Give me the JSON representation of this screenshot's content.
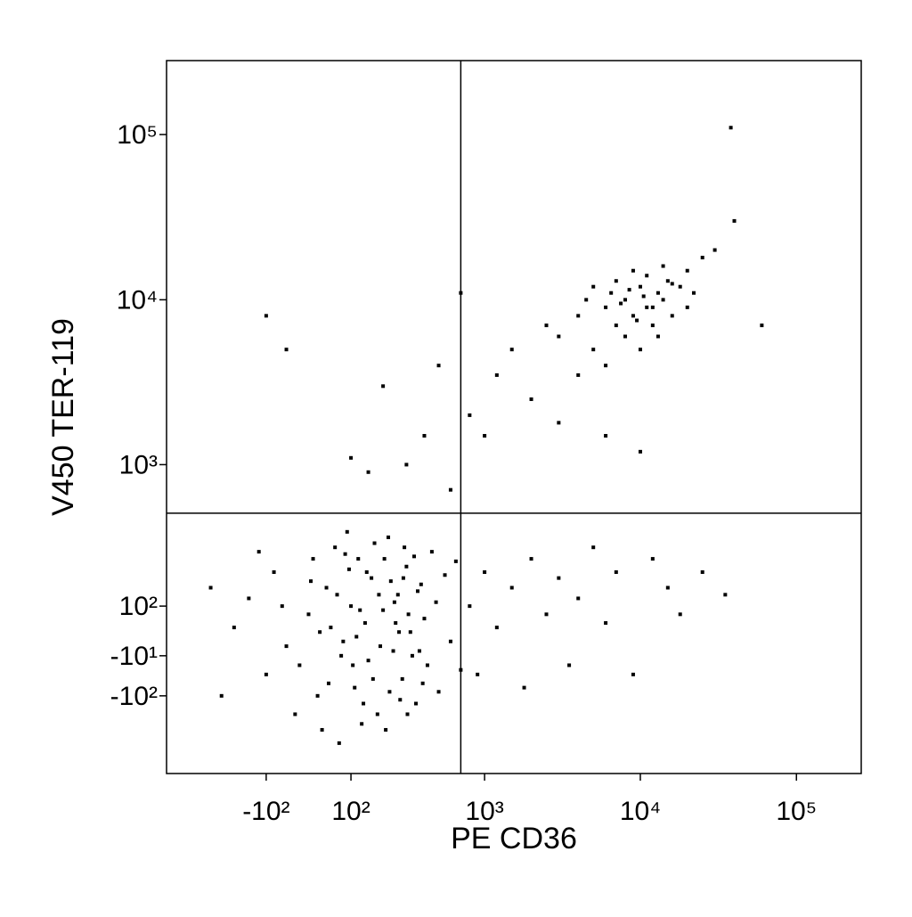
{
  "chart_data": {
    "type": "scatter",
    "xlabel": "PE CD36",
    "ylabel": "V450 TER-119",
    "xscale": "biexponential",
    "yscale": "biexponential",
    "color": "#000000",
    "xlim": [
      -600,
      260000
    ],
    "ylim": [
      -400,
      280000
    ],
    "xticks": [
      {
        "value": -100,
        "label": "-10²"
      },
      {
        "value": 100,
        "label": "10²"
      },
      {
        "value": 1000,
        "label": "10³"
      },
      {
        "value": 10000,
        "label": "10⁴"
      },
      {
        "value": 100000,
        "label": "10⁵"
      }
    ],
    "yticks": [
      {
        "value": -100,
        "label": "-10²"
      },
      {
        "value": -10,
        "label": "-10¹"
      },
      {
        "value": 100,
        "label": "10²"
      },
      {
        "value": 1000,
        "label": "10³"
      },
      {
        "value": 10000,
        "label": "10⁴"
      },
      {
        "value": 100000,
        "label": "10⁵"
      }
    ],
    "quadrant_x": 700,
    "quadrant_y": 500,
    "x": [
      -200,
      -150,
      -100,
      -80,
      -50,
      0,
      20,
      40,
      60,
      80,
      100,
      110,
      120,
      140,
      150,
      160,
      180,
      200,
      220,
      240,
      260,
      280,
      300,
      320,
      350,
      380,
      400,
      420,
      450,
      480,
      500,
      550,
      600,
      650,
      700,
      30,
      -30,
      70,
      90,
      130,
      -120,
      -250,
      -300,
      10,
      50,
      75,
      95,
      115,
      135,
      170,
      190,
      210,
      230,
      250,
      270,
      290,
      310,
      330,
      360,
      390,
      -60,
      -20,
      5,
      25,
      45,
      65,
      85,
      105,
      125,
      145,
      165,
      185,
      205,
      225,
      245,
      265,
      285,
      305,
      340,
      370,
      800,
      900,
      1000,
      1200,
      1500,
      1800,
      2000,
      2500,
      3000,
      3500,
      4000,
      5000,
      6000,
      7000,
      9000,
      12000,
      15000,
      18000,
      25000,
      35000,
      -100,
      -50,
      100,
      150,
      200,
      300,
      400,
      500,
      600,
      700,
      800,
      1000,
      1200,
      1500,
      2000,
      2500,
      3000,
      4000,
      6000,
      10000,
      3000,
      4000,
      5000,
      6000,
      7000,
      8000,
      9000,
      10000,
      11000,
      12000,
      13000,
      14000,
      15000,
      16000,
      18000,
      20000,
      22000,
      25000,
      30000,
      40000,
      5000,
      6000,
      7000,
      8000,
      9000,
      10000,
      11000,
      12000,
      13000,
      14000,
      7500,
      8500,
      9500,
      10500,
      6500,
      16000,
      20000,
      4500,
      38000,
      60000
    ],
    "y": [
      50,
      120,
      -50,
      200,
      10,
      80,
      -100,
      150,
      300,
      20,
      100,
      -80,
      250,
      60,
      -20,
      180,
      -150,
      90,
      350,
      0,
      130,
      -60,
      220,
      40,
      -120,
      160,
      70,
      -30,
      280,
      110,
      -90,
      190,
      20,
      240,
      -40,
      -200,
      -150,
      -250,
      380,
      -180,
      280,
      -100,
      150,
      250,
      50,
      -10,
      210,
      30,
      -120,
      320,
      10,
      -200,
      170,
      60,
      -110,
      300,
      80,
      -10,
      140,
      -70,
      100,
      -30,
      170,
      40,
      -70,
      130,
      270,
      -30,
      90,
      200,
      -60,
      130,
      250,
      -90,
      110,
      40,
      180,
      -150,
      260,
      0,
      100,
      -50,
      200,
      50,
      150,
      -80,
      250,
      80,
      180,
      -30,
      120,
      300,
      60,
      200,
      -50,
      250,
      150,
      80,
      200,
      130,
      8000,
      5000,
      1100,
      900,
      3000,
      1000,
      1500,
      4000,
      700,
      11000,
      2000,
      1500,
      3500,
      5000,
      2500,
      7000,
      1800,
      3500,
      1500,
      1200,
      6000,
      8000,
      5000,
      9000,
      7000,
      10000,
      8000,
      12000,
      9000,
      7000,
      11000,
      10000,
      13000,
      8000,
      12000,
      15000,
      11000,
      18000,
      20000,
      30000,
      12000,
      4000,
      13000,
      6000,
      15000,
      5000,
      14000,
      9000,
      6000,
      16000,
      9500,
      11500,
      7500,
      10500,
      11000,
      12500,
      9000,
      10000,
      110000,
      7000
    ]
  }
}
